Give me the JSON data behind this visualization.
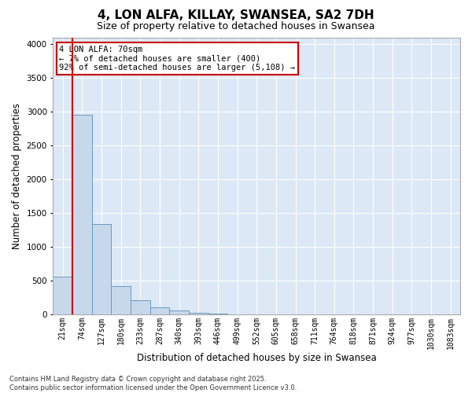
{
  "title": "4, LON ALFA, KILLAY, SWANSEA, SA2 7DH",
  "subtitle": "Size of property relative to detached houses in Swansea",
  "xlabel": "Distribution of detached houses by size in Swansea",
  "ylabel": "Number of detached properties",
  "categories": [
    "21sqm",
    "74sqm",
    "127sqm",
    "180sqm",
    "233sqm",
    "287sqm",
    "340sqm",
    "393sqm",
    "446sqm",
    "499sqm",
    "552sqm",
    "605sqm",
    "658sqm",
    "711sqm",
    "764sqm",
    "818sqm",
    "871sqm",
    "924sqm",
    "977sqm",
    "1030sqm",
    "1083sqm"
  ],
  "values": [
    560,
    2960,
    1340,
    420,
    210,
    110,
    55,
    25,
    10,
    5,
    3,
    2,
    1,
    1,
    1,
    0,
    0,
    0,
    0,
    0,
    0
  ],
  "bar_color": "#c8d8eb",
  "bar_edge_color": "#6898c0",
  "line_color": "#cc0000",
  "line_x_index": 1,
  "annotation_text": "4 LON ALFA: 70sqm\n← 7% of detached houses are smaller (400)\n92% of semi-detached houses are larger (5,108) →",
  "annotation_box_color": "#ffffff",
  "annotation_box_edge": "#cc0000",
  "ylim": [
    0,
    4100
  ],
  "yticks": [
    0,
    500,
    1000,
    1500,
    2000,
    2500,
    3000,
    3500,
    4000
  ],
  "plot_bg_color": "#dce8f5",
  "footer_line1": "Contains HM Land Registry data © Crown copyright and database right 2025.",
  "footer_line2": "Contains public sector information licensed under the Open Government Licence v3.0.",
  "title_fontsize": 11,
  "subtitle_fontsize": 9,
  "tick_fontsize": 7,
  "label_fontsize": 8.5,
  "annotation_fontsize": 7.5,
  "footer_fontsize": 6
}
